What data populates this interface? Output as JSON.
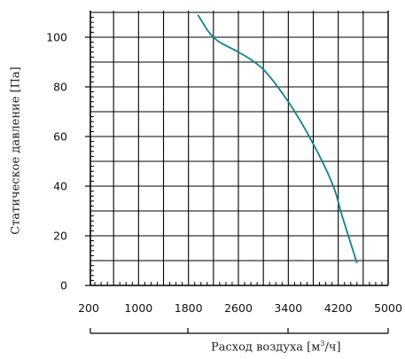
{
  "chart_data": {
    "type": "line",
    "title": "",
    "xlabel_main": "Расход воздуха [м",
    "xlabel_sup": "3",
    "xlabel_tail": "/ч]",
    "ylabel": "Статическое давление [Па]",
    "x_ticks": [
      "200",
      "1000",
      "1800",
      "2600",
      "3400",
      "4200",
      "5000"
    ],
    "y_ticks": [
      "0",
      "20",
      "40",
      "60",
      "80",
      "100"
    ],
    "xlim": [
      200,
      5000
    ],
    "ylim": [
      0,
      110
    ],
    "grid": true,
    "line_color": "#13818a",
    "series": [
      {
        "x": [
          1950,
          2000,
          2100,
          2200,
          2300,
          2450,
          2600,
          2800,
          3000,
          3200,
          3400,
          3600,
          3800,
          4000,
          4150,
          4250,
          4350,
          4450,
          4500
        ],
        "y": [
          109,
          107,
          103,
          100,
          98,
          96,
          94,
          91,
          87,
          81,
          74,
          66,
          57,
          47,
          38,
          29,
          21,
          13,
          9
        ]
      }
    ]
  }
}
